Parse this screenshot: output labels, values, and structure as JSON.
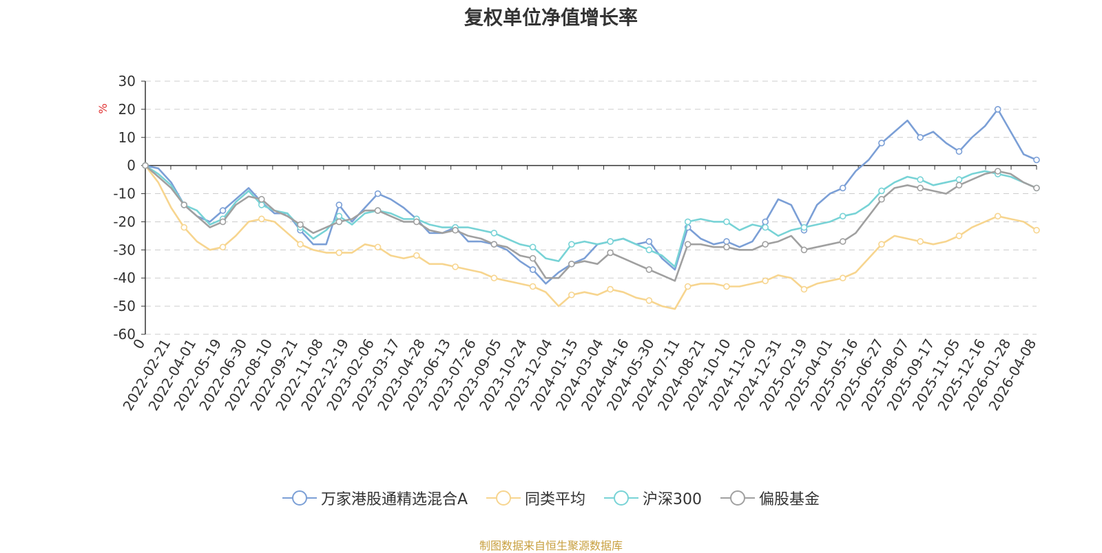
{
  "chart_data": {
    "type": "line",
    "title": "复权单位净值增长率",
    "ylabel": "%",
    "ylim": [
      -60,
      30
    ],
    "yticks": [
      30,
      20,
      10,
      0,
      -10,
      -20,
      -30,
      -40,
      -50,
      -60
    ],
    "grid": true,
    "legend_position": "bottom",
    "x_tick_labels": [
      "0",
      "2022-02-21",
      "2022-04-01",
      "2022-05-19",
      "2022-06-30",
      "2022-08-10",
      "2022-09-21",
      "2022-11-08",
      "2022-12-19",
      "2023-02-06",
      "2023-03-17",
      "2023-04-28",
      "2023-06-13",
      "2023-07-26",
      "2023-09-05",
      "2023-10-24",
      "2023-12-04",
      "2024-01-15",
      "2024-03-04",
      "2024-04-16",
      "2024-05-30",
      "2024-07-11",
      "2024-08-21",
      "2024-10-10",
      "2024-11-20",
      "2024-12-31",
      "2025-02-19",
      "2025-04-01",
      "2025-05-16",
      "2025-06-27",
      "2025-08-07",
      "2025-09-17",
      "2025-11-05",
      "2025-12-16",
      "2026-01-28",
      "2026-04-08"
    ],
    "series": [
      {
        "name": "万家港股通精选混合A",
        "color": "#7b9fd6",
        "values": [
          0,
          -1,
          -6,
          -14,
          -18,
          -20,
          -16,
          -12,
          -8,
          -13,
          -17,
          -17,
          -23,
          -28,
          -28,
          -14,
          -20,
          -15,
          -10,
          -12,
          -15,
          -19,
          -24,
          -24,
          -22,
          -27,
          -27,
          -28,
          -30,
          -34,
          -37,
          -42,
          -38,
          -35,
          -33,
          -28,
          -27,
          -26,
          -28,
          -27,
          -33,
          -37,
          -22,
          -26,
          -28,
          -27,
          -29,
          -27,
          -20,
          -12,
          -14,
          -23,
          -14,
          -10,
          -8,
          -2,
          2,
          8,
          12,
          16,
          10,
          12,
          8,
          5,
          10,
          14,
          20,
          12,
          4,
          2
        ]
      },
      {
        "name": "同类平均",
        "color": "#f7d58f",
        "values": [
          0,
          -6,
          -15,
          -22,
          -27,
          -30,
          -29,
          -25,
          -20,
          -19,
          -20,
          -24,
          -28,
          -30,
          -31,
          -31,
          -31,
          -28,
          -29,
          -32,
          -33,
          -32,
          -35,
          -35,
          -36,
          -37,
          -38,
          -40,
          -41,
          -42,
          -43,
          -45,
          -50,
          -46,
          -45,
          -46,
          -44,
          -45,
          -47,
          -48,
          -50,
          -51,
          -43,
          -42,
          -42,
          -43,
          -43,
          -42,
          -41,
          -39,
          -40,
          -44,
          -42,
          -41,
          -40,
          -38,
          -33,
          -28,
          -25,
          -26,
          -27,
          -28,
          -27,
          -25,
          -22,
          -20,
          -18,
          -19,
          -20,
          -23
        ]
      },
      {
        "name": "沪深300",
        "color": "#78d3d6",
        "values": [
          0,
          -3,
          -7,
          -14,
          -16,
          -21,
          -19,
          -13,
          -9,
          -14,
          -16,
          -17,
          -22,
          -26,
          -23,
          -18,
          -21,
          -17,
          -16,
          -17,
          -19,
          -19,
          -21,
          -22,
          -22,
          -22,
          -23,
          -24,
          -26,
          -28,
          -29,
          -33,
          -34,
          -28,
          -27,
          -28,
          -27,
          -26,
          -28,
          -30,
          -32,
          -36,
          -20,
          -19,
          -20,
          -20,
          -23,
          -21,
          -22,
          -25,
          -23,
          -22,
          -21,
          -20,
          -18,
          -17,
          -14,
          -9,
          -6,
          -4,
          -5,
          -7,
          -6,
          -5,
          -3,
          -2,
          -3,
          -4,
          -6,
          -8
        ]
      },
      {
        "name": "偏股基金",
        "color": "#a0a0a0",
        "values": [
          0,
          -4,
          -8,
          -14,
          -18,
          -22,
          -20,
          -14,
          -11,
          -12,
          -16,
          -18,
          -21,
          -24,
          -22,
          -20,
          -19,
          -16,
          -16,
          -18,
          -20,
          -20,
          -23,
          -24,
          -23,
          -25,
          -26,
          -28,
          -29,
          -32,
          -33,
          -40,
          -40,
          -35,
          -34,
          -35,
          -31,
          -33,
          -35,
          -37,
          -39,
          -41,
          -28,
          -28,
          -29,
          -29,
          -30,
          -30,
          -28,
          -27,
          -25,
          -30,
          -29,
          -28,
          -27,
          -24,
          -18,
          -12,
          -8,
          -7,
          -8,
          -9,
          -10,
          -7,
          -5,
          -3,
          -2,
          -3,
          -6,
          -8
        ]
      }
    ]
  },
  "legend": {
    "items": [
      {
        "label": "万家港股通精选混合A",
        "color": "#7b9fd6"
      },
      {
        "label": "同类平均",
        "color": "#f7d58f"
      },
      {
        "label": "沪深300",
        "color": "#78d3d6"
      },
      {
        "label": "偏股基金",
        "color": "#a0a0a0"
      }
    ]
  },
  "source_note": "制图数据来自恒生聚源数据库"
}
